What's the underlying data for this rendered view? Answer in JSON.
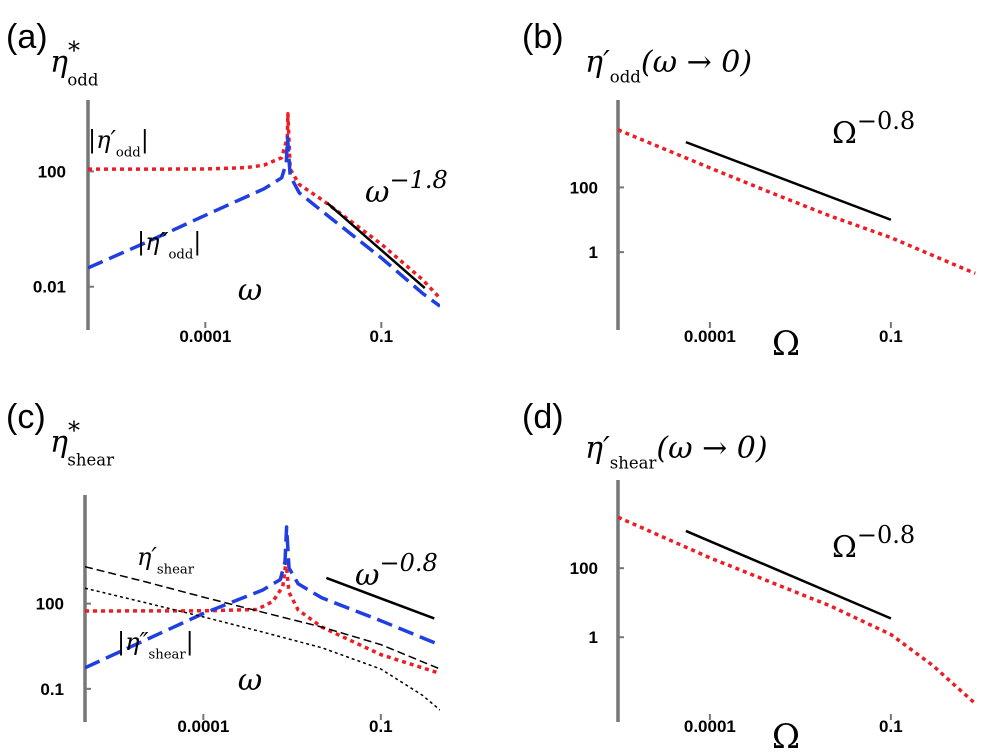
{
  "chart_data": [
    {
      "panel": "(a)",
      "type": "line",
      "ylabel": {
        "base": "η",
        "sup": "*",
        "sub": "odd"
      },
      "xlabel": "ω",
      "x_scale": "log",
      "y_scale": "log",
      "x_ticks": [
        {
          "value": 0.0001,
          "label": "0.0001"
        },
        {
          "value": 0.1,
          "label": "0.1"
        }
      ],
      "y_ticks": [
        {
          "value": 0.01,
          "label": "0.01"
        },
        {
          "value": 100,
          "label": "100"
        }
      ],
      "xlim": [
        1e-06,
        1.0
      ],
      "ylim": [
        0.0007,
        30000
      ],
      "series": [
        {
          "label": {
            "base": "|η′",
            "sub": "odd",
            "tail": "|"
          },
          "color": "#ee1c24",
          "style": "dotted",
          "points": [
            [
              1e-06,
              120
            ],
            [
              1e-05,
              120
            ],
            [
              0.0001,
              121
            ],
            [
              0.0005,
              135
            ],
            [
              0.001,
              165
            ],
            [
              0.002,
              300
            ],
            [
              0.0025,
              1500
            ],
            [
              0.00255,
              10000
            ],
            [
              0.0028,
              120
            ],
            [
              0.004,
              35
            ],
            [
              0.01,
              10
            ],
            [
              0.1,
              0.3
            ],
            [
              0.5,
              0.018
            ],
            [
              1.0,
              0.004
            ]
          ]
        },
        {
          "label": {
            "base": "|η″",
            "sub": "odd",
            "tail": "|"
          },
          "color": "#1f3fe0",
          "style": "dashed",
          "points": [
            [
              1e-06,
              0.045
            ],
            [
              1e-05,
              0.35
            ],
            [
              0.0001,
              3
            ],
            [
              0.001,
              25
            ],
            [
              0.002,
              60
            ],
            [
              0.0024,
              200
            ],
            [
              0.00252,
              1500
            ],
            [
              0.0028,
              70
            ],
            [
              0.004,
              18
            ],
            [
              0.01,
              4
            ],
            [
              0.1,
              0.1
            ],
            [
              0.5,
              0.006
            ],
            [
              1.0,
              0.0021
            ]
          ]
        }
      ],
      "guide": {
        "label": "ω",
        "exponent": "−1.8",
        "points": [
          [
            0.012,
            8
          ],
          [
            0.55,
            0.009
          ]
        ]
      }
    },
    {
      "panel": "(b)",
      "type": "line",
      "ylabel": {
        "base": "η′",
        "sub": "odd",
        "tail": "(ω → 0)"
      },
      "xlabel": "Ω",
      "x_scale": "log",
      "y_scale": "log",
      "x_ticks": [
        {
          "value": 0.0001,
          "label": "0.0001"
        },
        {
          "value": 0.1,
          "label": "0.1"
        }
      ],
      "y_ticks": [
        {
          "value": 1,
          "label": "1"
        },
        {
          "value": 100,
          "label": "100"
        }
      ],
      "xlim": [
        3e-06,
        3.0
      ],
      "ylim": [
        0.008,
        50000
      ],
      "series": [
        {
          "color": "#ee1c24",
          "style": "dotted",
          "points": [
            [
              3e-06,
              6000
            ],
            [
              0.0001,
              400
            ],
            [
              0.001,
              70
            ],
            [
              0.01,
              13
            ],
            [
              0.1,
              2.8
            ],
            [
              1.0,
              0.45
            ],
            [
              2.5,
              0.22
            ]
          ]
        }
      ],
      "guide": {
        "label": "Ω",
        "exponent": "−0.8",
        "points": [
          [
            4e-05,
            2500
          ],
          [
            0.1,
            10
          ]
        ]
      }
    },
    {
      "panel": "(c)",
      "type": "line",
      "ylabel": {
        "base": "η",
        "sup": "*",
        "sub": "shear"
      },
      "xlabel": "ω",
      "x_scale": "log",
      "y_scale": "log",
      "x_ticks": [
        {
          "value": 0.0001,
          "label": "0.0001"
        },
        {
          "value": 0.1,
          "label": "0.1"
        }
      ],
      "y_ticks": [
        {
          "value": 0.1,
          "label": "0.1"
        },
        {
          "value": 100,
          "label": "100"
        }
      ],
      "xlim": [
        1e-06,
        1.0
      ],
      "ylim": [
        0.008,
        1000000
      ],
      "series": [
        {
          "label": {
            "base": "η′",
            "sub": "shear"
          },
          "color": "#ee1c24",
          "style": "dotted",
          "points": [
            [
              1e-06,
              55
            ],
            [
              0.0001,
              56
            ],
            [
              0.0008,
              62
            ],
            [
              0.0015,
              120
            ],
            [
              0.0022,
              400
            ],
            [
              0.0025,
              3000
            ],
            [
              0.0028,
              250
            ],
            [
              0.004,
              60
            ],
            [
              0.01,
              15
            ],
            [
              0.1,
              1.6
            ],
            [
              1.0,
              0.35
            ]
          ]
        },
        {
          "label": {
            "base": "|η″",
            "sub": "shear",
            "tail": "|"
          },
          "color": "#1f3fe0",
          "style": "dashed",
          "points": [
            [
              1e-06,
              0.55
            ],
            [
              1e-05,
              5
            ],
            [
              0.0001,
              45
            ],
            [
              0.001,
              300
            ],
            [
              0.002,
              700
            ],
            [
              0.0024,
              3000
            ],
            [
              0.00255,
              50000
            ],
            [
              0.0028,
              1800
            ],
            [
              0.004,
              500
            ],
            [
              0.01,
              160
            ],
            [
              0.1,
              25
            ],
            [
              1.0,
              3.5
            ]
          ]
        },
        {
          "color": "#000000",
          "style": "thin-dashed",
          "points": [
            [
              1e-06,
              2000
            ],
            [
              1e-05,
              600
            ],
            [
              0.0001,
              170
            ],
            [
              0.001,
              50
            ],
            [
              0.01,
              15
            ],
            [
              0.1,
              3.6
            ],
            [
              1.0,
              0.5
            ]
          ]
        },
        {
          "color": "#000000",
          "style": "thin-dotted",
          "points": [
            [
              1e-06,
              350
            ],
            [
              1e-05,
              110
            ],
            [
              0.0001,
              34
            ],
            [
              0.001,
              10
            ],
            [
              0.01,
              2.8
            ],
            [
              0.1,
              0.5
            ],
            [
              0.5,
              0.06
            ],
            [
              1.0,
              0.018
            ]
          ]
        }
      ],
      "guide": {
        "label": "ω",
        "exponent": "−0.8",
        "points": [
          [
            0.012,
            800
          ],
          [
            0.8,
            30
          ]
        ]
      }
    },
    {
      "panel": "(d)",
      "type": "line",
      "ylabel": {
        "base": "η′",
        "sub": "shear",
        "tail": "(ω → 0)"
      },
      "xlabel": "Ω",
      "x_scale": "log",
      "y_scale": "log",
      "x_ticks": [
        {
          "value": 0.0001,
          "label": "0.0001"
        },
        {
          "value": 0.1,
          "label": "0.1"
        }
      ],
      "y_ticks": [
        {
          "value": 1,
          "label": "1"
        },
        {
          "value": 100,
          "label": "100"
        }
      ],
      "xlim": [
        3e-06,
        3.0
      ],
      "ylim": [
        0.004,
        50000
      ],
      "series": [
        {
          "color": "#ee1c24",
          "style": "dotted",
          "points": [
            [
              3e-06,
              3000
            ],
            [
              0.0001,
              200
            ],
            [
              0.001,
              40
            ],
            [
              0.01,
              8
            ],
            [
              0.1,
              1.2
            ],
            [
              0.5,
              0.15
            ],
            [
              1.0,
              0.05
            ],
            [
              2.5,
              0.012
            ]
          ]
        }
      ],
      "guide": {
        "label": "Ω",
        "exponent": "−0.8",
        "points": [
          [
            4e-05,
            1200
          ],
          [
            0.1,
            3.5
          ]
        ]
      }
    }
  ]
}
